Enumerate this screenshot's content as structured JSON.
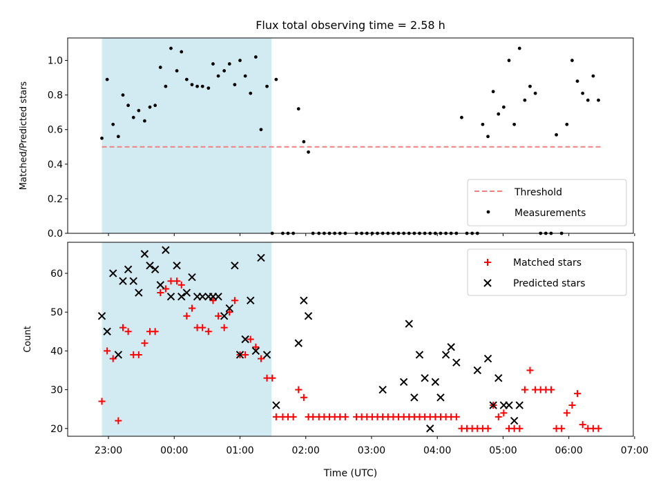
{
  "chart_data": [
    {
      "type": "scatter",
      "title": "Flux total observing time = 2.58 h",
      "xlabel": "",
      "ylabel": "Matched/Predicted stars",
      "ylim": [
        0,
        1.13
      ],
      "xlim_hours": [
        -0.62,
        7.98
      ],
      "yticks": [
        {
          "v": 0,
          "label": "0.0"
        },
        {
          "v": 0.2,
          "label": "0.2"
        },
        {
          "v": 0.4,
          "label": "0.4"
        },
        {
          "v": 0.6,
          "label": "0.6"
        },
        {
          "v": 0.8,
          "label": "0.8"
        },
        {
          "v": 1.0,
          "label": "1.0"
        }
      ],
      "shaded_span_hours": [
        -0.1,
        2.48
      ],
      "threshold": {
        "name": "Threshold",
        "value": 0.5,
        "x_range_hours": [
          -0.1,
          7.5
        ],
        "color": "#f08080"
      },
      "legend": {
        "position": "lower-right",
        "entries": [
          "Threshold",
          "Measurements"
        ]
      },
      "series": [
        {
          "name": "Measurements",
          "color": "#000000",
          "x": [
            -0.1,
            -0.02,
            0.07,
            0.15,
            0.22,
            0.3,
            0.38,
            0.46,
            0.55,
            0.63,
            0.71,
            0.79,
            0.87,
            0.95,
            1.04,
            1.11,
            1.19,
            1.27,
            1.35,
            1.43,
            1.52,
            1.59,
            1.67,
            1.76,
            1.84,
            1.92,
            2.0,
            2.08,
            2.16,
            2.24,
            2.32,
            2.41,
            2.49,
            2.55,
            2.65,
            2.73,
            2.81,
            2.89,
            2.97,
            3.04,
            3.11,
            3.2,
            3.28,
            3.36,
            3.44,
            3.52,
            3.6,
            3.77,
            3.85,
            3.93,
            4.01,
            4.09,
            4.17,
            4.25,
            4.33,
            4.41,
            4.49,
            4.57,
            4.65,
            4.73,
            4.81,
            4.89,
            4.97,
            5.05,
            5.13,
            5.21,
            5.29,
            5.37,
            5.45,
            5.53,
            5.61,
            5.69,
            5.77,
            5.85,
            5.93,
            6.01,
            6.09,
            6.17,
            6.25,
            6.33,
            6.41,
            6.49,
            6.57,
            6.65,
            6.73,
            6.81,
            6.89,
            6.97,
            7.05,
            7.13,
            7.21,
            7.29,
            7.37,
            7.45
          ],
          "y": [
            0.55,
            0.89,
            0.63,
            0.56,
            0.8,
            0.74,
            0.67,
            0.71,
            0.65,
            0.73,
            0.74,
            0.96,
            0.85,
            1.07,
            0.94,
            1.05,
            0.89,
            0.86,
            0.85,
            0.85,
            0.84,
            0.98,
            0.91,
            0.94,
            0.98,
            0.86,
            1.0,
            0.91,
            0.81,
            1.02,
            0.6,
            0.85,
            0.0,
            0.89,
            0.0,
            0.0,
            0.0,
            0.72,
            0.53,
            0.47,
            0.0,
            0.0,
            0.0,
            0.0,
            0.0,
            0.0,
            0.0,
            0.0,
            0.0,
            0.0,
            0.0,
            0.0,
            0.0,
            0.0,
            0.0,
            0.0,
            0.0,
            0.0,
            0.0,
            0.0,
            0.0,
            0.0,
            0.0,
            0.0,
            0.0,
            0.0,
            0.0,
            0.67,
            0.0,
            0.0,
            0.0,
            0.63,
            0.56,
            0.82,
            0.69,
            0.73,
            1.0,
            0.63,
            1.07,
            0.77,
            0.85,
            0.81,
            0.0,
            0.0,
            0.0,
            0.57,
            0.0,
            0.63,
            1.0,
            0.88,
            0.81,
            0.77,
            0.91,
            0.77
          ]
        }
      ]
    },
    {
      "type": "scatter",
      "title": "",
      "xlabel": "Time (UTC)",
      "ylabel": "Count",
      "ylim": [
        18,
        68
      ],
      "xlim_hours": [
        -0.62,
        7.98
      ],
      "yticks": [
        {
          "v": 20,
          "label": "20"
        },
        {
          "v": 30,
          "label": "30"
        },
        {
          "v": 40,
          "label": "40"
        },
        {
          "v": 50,
          "label": "50"
        },
        {
          "v": 60,
          "label": "60"
        }
      ],
      "xticks": [
        {
          "h": 0,
          "label": "23:00"
        },
        {
          "h": 1,
          "label": "00:00"
        },
        {
          "h": 2,
          "label": "01:00"
        },
        {
          "h": 3,
          "label": "02:00"
        },
        {
          "h": 4,
          "label": "03:00"
        },
        {
          "h": 5,
          "label": "04:00"
        },
        {
          "h": 6,
          "label": "05:00"
        },
        {
          "h": 7,
          "label": "06:00"
        },
        {
          "h": 8,
          "label": "07:00"
        }
      ],
      "shaded_span_hours": [
        -0.1,
        2.48
      ],
      "legend": {
        "position": "upper-right",
        "entries": [
          "Matched stars",
          "Predicted stars"
        ]
      },
      "series": [
        {
          "name": "Matched stars",
          "color": "#ff0000",
          "marker": "+",
          "x": [
            -0.1,
            -0.02,
            0.07,
            0.15,
            0.22,
            0.3,
            0.38,
            0.46,
            0.55,
            0.63,
            0.71,
            0.79,
            0.87,
            0.95,
            1.04,
            1.11,
            1.19,
            1.27,
            1.35,
            1.43,
            1.52,
            1.59,
            1.67,
            1.76,
            1.84,
            1.92,
            2.0,
            2.08,
            2.16,
            2.24,
            2.32,
            2.41,
            2.49,
            2.55,
            2.65,
            2.73,
            2.81,
            2.89,
            2.97,
            3.04,
            3.11,
            3.2,
            3.28,
            3.36,
            3.44,
            3.52,
            3.6,
            3.77,
            3.85,
            3.93,
            4.01,
            4.09,
            4.17,
            4.25,
            4.33,
            4.41,
            4.49,
            4.57,
            4.65,
            4.73,
            4.81,
            4.89,
            4.97,
            5.05,
            5.13,
            5.21,
            5.29,
            5.37,
            5.45,
            5.53,
            5.61,
            5.69,
            5.77,
            5.85,
            5.93,
            6.01,
            6.09,
            6.17,
            6.25,
            6.33,
            6.41,
            6.49,
            6.57,
            6.65,
            6.73,
            6.81,
            6.89,
            6.97,
            7.05,
            7.13,
            7.21,
            7.29,
            7.37,
            7.45
          ],
          "y": [
            27,
            40,
            38,
            22,
            46,
            45,
            39,
            39,
            42,
            45,
            45,
            55,
            56,
            58,
            58,
            57,
            49,
            51,
            46,
            46,
            45,
            53,
            49,
            46,
            50,
            53,
            39,
            39,
            43,
            41,
            38,
            33,
            33,
            23,
            23,
            23,
            23,
            30,
            28,
            23,
            23,
            23,
            23,
            23,
            23,
            23,
            23,
            23,
            23,
            23,
            23,
            23,
            23,
            23,
            23,
            23,
            23,
            23,
            23,
            23,
            23,
            23,
            23,
            23,
            23,
            23,
            23,
            20,
            20,
            20,
            20,
            20,
            20,
            26,
            23,
            24,
            20,
            20,
            20,
            30,
            35,
            30,
            30,
            30,
            30,
            20,
            20,
            24,
            26,
            29,
            21,
            20,
            20,
            20
          ]
        },
        {
          "name": "Predicted stars",
          "color": "#000000",
          "marker": "x",
          "x": [
            -0.1,
            -0.02,
            0.07,
            0.15,
            0.22,
            0.3,
            0.38,
            0.46,
            0.55,
            0.63,
            0.71,
            0.79,
            0.87,
            0.95,
            1.04,
            1.11,
            1.19,
            1.27,
            1.35,
            1.43,
            1.52,
            1.59,
            1.67,
            1.76,
            1.84,
            1.92,
            2.0,
            2.08,
            2.16,
            2.24,
            2.32,
            2.41,
            2.55,
            2.89,
            2.97,
            3.04,
            4.17,
            4.49,
            4.57,
            4.65,
            4.73,
            4.81,
            4.89,
            4.97,
            5.05,
            5.13,
            5.21,
            5.29,
            5.61,
            5.77,
            5.85,
            5.93,
            6.01,
            6.09,
            6.17,
            6.25
          ],
          "y": [
            49,
            45,
            60,
            39,
            58,
            61,
            58,
            55,
            65,
            62,
            61,
            57,
            66,
            54,
            62,
            54,
            55,
            59,
            54,
            54,
            54,
            54,
            54,
            49,
            51,
            62,
            39,
            43,
            53,
            40,
            64,
            39,
            26,
            42,
            53,
            49,
            30,
            32,
            47,
            28,
            39,
            33,
            20,
            32,
            28,
            39,
            41,
            37,
            35,
            38,
            26,
            33,
            26,
            26,
            22,
            26
          ]
        }
      ]
    }
  ]
}
